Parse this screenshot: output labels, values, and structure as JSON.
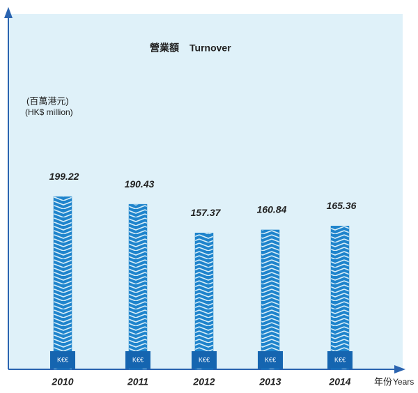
{
  "chart_data": {
    "type": "bar",
    "title": "營業額",
    "title_en": "Turnover",
    "y_label": "(百萬港元)",
    "y_label_en": "(HK$ million)",
    "x_label": "年份",
    "x_label_en": "Years",
    "bar_badge": "K€€",
    "categories": [
      "2010",
      "2011",
      "2012",
      "2013",
      "2014"
    ],
    "values": [
      199.22,
      190.43,
      157.37,
      160.84,
      165.36
    ],
    "color": "#1f84cc",
    "ylim": [
      0,
      410
    ]
  }
}
